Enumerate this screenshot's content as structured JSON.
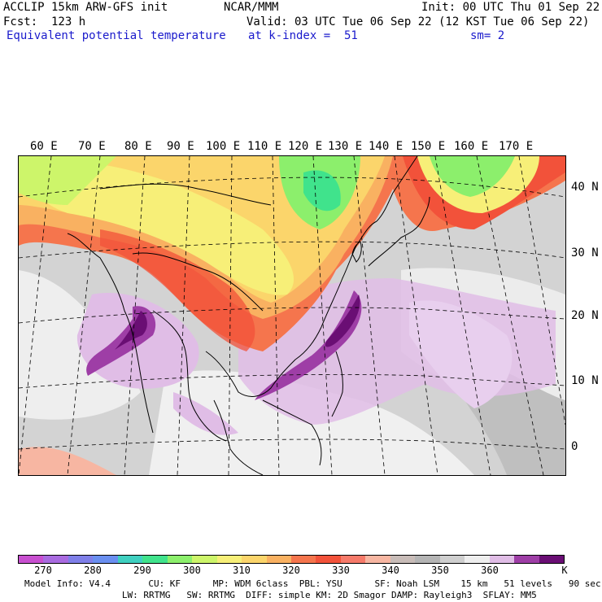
{
  "header": {
    "line1_left": "ACCLIP 15km ARW-GFS init",
    "line1_center": "NCAR/MMM",
    "line1_right": "Init: 00 UTC Thu 01 Sep 22",
    "line2_left": "Fcst:  123 h",
    "line2_right": "Valid: 03 UTC Tue 06 Sep 22 (12 KST Tue 06 Sep 22)",
    "line3_left": "Equivalent potential temperature",
    "line3_center": "at k-index =  51",
    "line3_right": "sm= 2"
  },
  "map": {
    "lon_labels": [
      "60 E",
      "70 E",
      "80 E",
      "90 E",
      "100 E",
      "110 E",
      "120 E",
      "130 E",
      "140 E",
      "150 E",
      "160 E",
      "170 E"
    ],
    "lat_labels": [
      "40 N",
      "30 N",
      "20 N",
      "10 N",
      "0"
    ]
  },
  "colorbar": {
    "colors": [
      "#c84fd0",
      "#a96be0",
      "#7f7fe8",
      "#6a8ff0",
      "#3fd0c0",
      "#40e38c",
      "#8cef6c",
      "#cdf56a",
      "#f7ef78",
      "#fbd56b",
      "#f9b161",
      "#f5754d",
      "#f2523a",
      "#f67a6a",
      "#f7b6a2",
      "#c8bcb8",
      "#b4b4b4",
      "#cfcfcf",
      "#eeeeee",
      "#e0bde6",
      "#9e3ea6",
      "#6a0e74"
    ],
    "ticks": [
      "270",
      "280",
      "290",
      "300",
      "310",
      "320",
      "330",
      "340",
      "350",
      "360"
    ],
    "unit": "K"
  },
  "footer": {
    "line1": "Model Info: V4.4       CU: KF      MP: WDM 6class  PBL: YSU      SF: Noah LSM    15 km   51 levels   90 sec",
    "line2": "   LW: RRTMG   SW: RRTMG  DIFF: simple KM: 2D Smagor DAMP: Rayleigh3  SFLAY: MM5"
  }
}
